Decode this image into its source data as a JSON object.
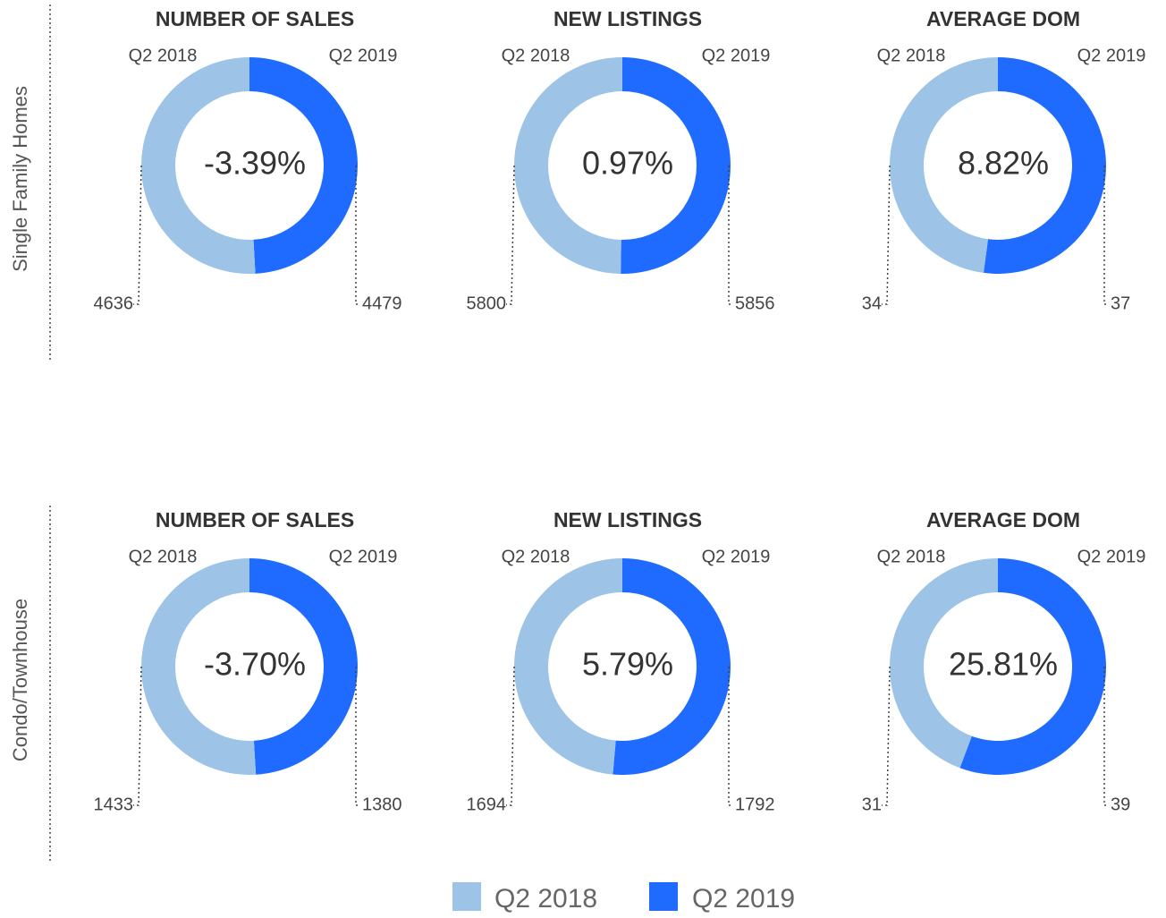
{
  "row_labels": [
    "Single Family Homes",
    "Condo/Townhouse"
  ],
  "chart_data": [
    {
      "type": "donut",
      "title": "NUMBER OF SALES",
      "center_label": "-3.39%",
      "categories": [
        "Q2 2018",
        "Q2 2019"
      ],
      "values": [
        4636,
        4479
      ],
      "colors": [
        "#9dc3e6",
        "#1f6bff"
      ]
    },
    {
      "type": "donut",
      "title": "NEW LISTINGS",
      "center_label": "0.97%",
      "categories": [
        "Q2 2018",
        "Q2 2019"
      ],
      "values": [
        5800,
        5856
      ],
      "colors": [
        "#9dc3e6",
        "#1f6bff"
      ]
    },
    {
      "type": "donut",
      "title": "AVERAGE DOM",
      "center_label": "8.82%",
      "categories": [
        "Q2 2018",
        "Q2 2019"
      ],
      "values": [
        34,
        37
      ],
      "colors": [
        "#9dc3e6",
        "#1f6bff"
      ]
    },
    {
      "type": "donut",
      "title": "NUMBER OF SALES",
      "center_label": "-3.70%",
      "categories": [
        "Q2 2018",
        "Q2 2019"
      ],
      "values": [
        1433,
        1380
      ],
      "colors": [
        "#9dc3e6",
        "#1f6bff"
      ]
    },
    {
      "type": "donut",
      "title": "NEW LISTINGS",
      "center_label": "5.79%",
      "categories": [
        "Q2 2018",
        "Q2 2019"
      ],
      "values": [
        1694,
        1792
      ],
      "colors": [
        "#9dc3e6",
        "#1f6bff"
      ]
    },
    {
      "type": "donut",
      "title": "AVERAGE DOM",
      "center_label": "25.81%",
      "categories": [
        "Q2 2018",
        "Q2 2019"
      ],
      "values": [
        31,
        39
      ],
      "colors": [
        "#9dc3e6",
        "#1f6bff"
      ]
    }
  ]
}
